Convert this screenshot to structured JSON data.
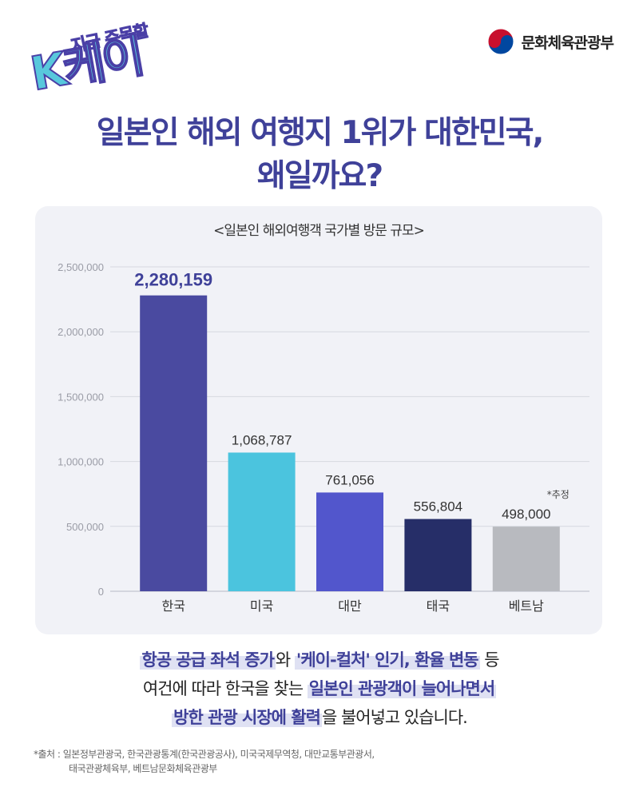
{
  "logo": {
    "small_text": "지금 주목할",
    "big_text": "K케이"
  },
  "ministry": {
    "name": "문화체육관광부",
    "icon": "taegeuk-icon"
  },
  "headline": {
    "line1": "일본인 해외 여행지 1위가 대한민국,",
    "line2": "왜일까요?"
  },
  "chart_data": {
    "type": "bar",
    "title": "<일본인 해외여행객 국가별 방문 규모>",
    "categories": [
      "한국",
      "미국",
      "대만",
      "태국",
      "베트남"
    ],
    "values": [
      2280159,
      1068787,
      761056,
      556804,
      498000
    ],
    "value_labels": [
      "2,280,159",
      "1,068,787",
      "761,056",
      "556,804",
      "498,000"
    ],
    "bar_colors": [
      "#4a4aa0",
      "#4bc4de",
      "#5256cc",
      "#262e68",
      "#b8babf"
    ],
    "annotation": {
      "category": "베트남",
      "text": "*추정"
    },
    "ylim": [
      0,
      2500000
    ],
    "yticks": [
      0,
      500000,
      1000000,
      1500000,
      2000000,
      2500000
    ],
    "ytick_labels": [
      "0",
      "500,000",
      "1,000,000",
      "1,500,000",
      "2,000,000",
      "2,500,000"
    ],
    "xlabel": "",
    "ylabel": "",
    "grid": true,
    "legend": "none"
  },
  "description": {
    "l1_a": "항공 공급 좌석 증가",
    "l1_b": "와 ",
    "l1_c": "'케이-컬처' 인기, 환율 변동",
    "l1_d": " 등",
    "l2_a": "여건에 따라 한국을 찾는 ",
    "l2_b": "일본인 관광객이 늘어나면서",
    "l3_a": "방한 관광 시장에 활력",
    "l3_b": "을 불어넣고 있습니다."
  },
  "source": {
    "line1": "*출처 : 일본정부관광국, 한국관광통계(한국관광공사), 미국국제무역청, 대만교통부관광서,",
    "line2": "태국관광체육부, 베트남문화체육관광부"
  },
  "colors": {
    "headline": "#3f4199",
    "card_bg": "#f1f2f7",
    "accent_cyan": "#58c8dc"
  }
}
